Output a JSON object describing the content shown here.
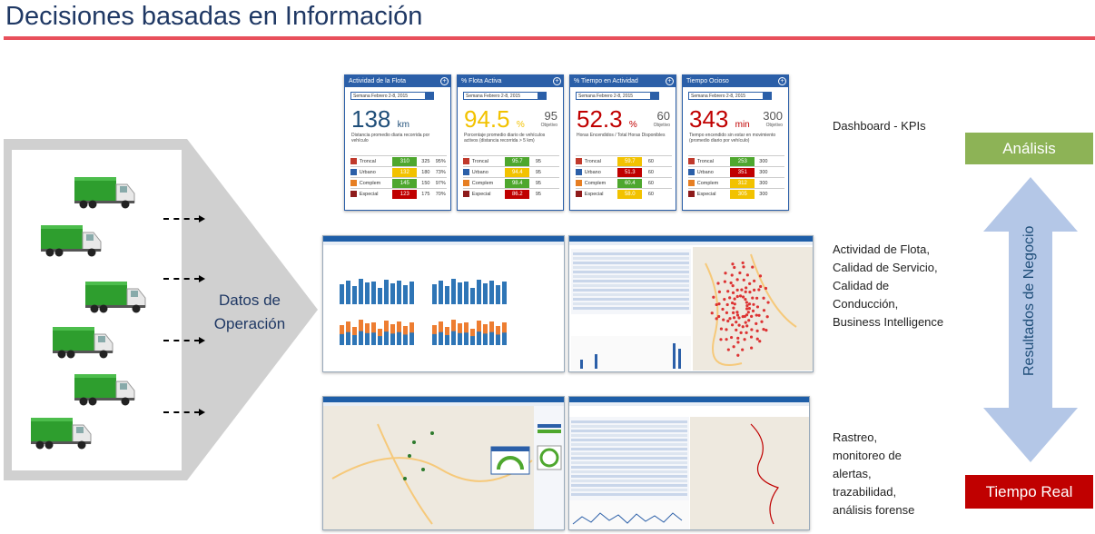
{
  "title": "Decisiones basadas en Información",
  "colors": {
    "accent_rule": "#e8505b",
    "analisis": "#8db356",
    "tiempo_real": "#c00000",
    "kpi_blue": "#2b5fa8",
    "truck_green": "#2e9e2e"
  },
  "datos_operacion": "Datos de Operación",
  "kpis": [
    {
      "title": "Actividad de la Flota",
      "period": "Semana Febrero 2-8, 2015",
      "value": "138",
      "unit": "km",
      "objective": "",
      "objective_label": "",
      "value_color": "#1f4e79",
      "description": "Distancia promedio diaria recorrida por vehículo",
      "rows": [
        {
          "label": "Troncal",
          "value": "310",
          "obj": "325",
          "pct": "95%",
          "color": "#4ea72e",
          "icon": "#c0392b"
        },
        {
          "label": "Urbano",
          "value": "132",
          "obj": "180",
          "pct": "73%",
          "color": "#f2c200",
          "icon": "#2b5fa8"
        },
        {
          "label": "Complem",
          "value": "145",
          "obj": "150",
          "pct": "97%",
          "color": "#4ea72e",
          "icon": "#e67e22"
        },
        {
          "label": "Especial",
          "value": "123",
          "obj": "175",
          "pct": "70%",
          "color": "#c00000",
          "icon": "#8e1b1b"
        }
      ]
    },
    {
      "title": "% Flota Activa",
      "period": "Semana Febrero 2-8, 2015",
      "value": "94.5",
      "unit": "%",
      "objective": "95",
      "objective_label": "Objetivo",
      "value_color": "#f2c200",
      "description": "Porcentaje promedio diario de vehículos activos (distancia recorrida > 5 km)",
      "rows": [
        {
          "label": "Troncal",
          "value": "95.7",
          "obj": "95",
          "pct": "",
          "color": "#4ea72e",
          "icon": "#c0392b"
        },
        {
          "label": "Urbano",
          "value": "94.4",
          "obj": "95",
          "pct": "",
          "color": "#f2c200",
          "icon": "#2b5fa8"
        },
        {
          "label": "Complem",
          "value": "98.4",
          "obj": "95",
          "pct": "",
          "color": "#4ea72e",
          "icon": "#e67e22"
        },
        {
          "label": "Especial",
          "value": "86.2",
          "obj": "95",
          "pct": "",
          "color": "#c00000",
          "icon": "#8e1b1b"
        }
      ]
    },
    {
      "title": "% Tiempo en Actividad",
      "period": "Semana Febrero 2-8, 2015",
      "value": "52.3",
      "unit": "%",
      "objective": "60",
      "objective_label": "Objetivo",
      "value_color": "#c00000",
      "description": "Horas Encendidos / Total Horas Disponibles",
      "rows": [
        {
          "label": "Troncal",
          "value": "59.7",
          "obj": "60",
          "pct": "",
          "color": "#f2c200",
          "icon": "#c0392b"
        },
        {
          "label": "Urbano",
          "value": "51.3",
          "obj": "60",
          "pct": "",
          "color": "#c00000",
          "icon": "#2b5fa8"
        },
        {
          "label": "Complem",
          "value": "60.4",
          "obj": "60",
          "pct": "",
          "color": "#4ea72e",
          "icon": "#e67e22"
        },
        {
          "label": "Especial",
          "value": "58.0",
          "obj": "60",
          "pct": "",
          "color": "#f2c200",
          "icon": "#8e1b1b"
        }
      ]
    },
    {
      "title": "Tiempo Ocioso",
      "period": "Semana Febrero 2-8, 2015",
      "value": "343",
      "unit": "min",
      "objective": "300",
      "objective_label": "Objetivo",
      "value_color": "#c00000",
      "description": "Tiempo encendido sin estar en movimiento (promedio diario por vehículo)",
      "rows": [
        {
          "label": "Troncal",
          "value": "253",
          "obj": "300",
          "pct": "",
          "color": "#4ea72e",
          "icon": "#c0392b"
        },
        {
          "label": "Urbano",
          "value": "351",
          "obj": "300",
          "pct": "",
          "color": "#c00000",
          "icon": "#2b5fa8"
        },
        {
          "label": "Complem",
          "value": "312",
          "obj": "300",
          "pct": "",
          "color": "#f2c200",
          "icon": "#e67e22"
        },
        {
          "label": "Especial",
          "value": "305",
          "obj": "300",
          "pct": "",
          "color": "#f2c200",
          "icon": "#8e1b1b"
        }
      ]
    }
  ],
  "labels": {
    "dashboard": "Dashboard - KPIs",
    "middle": [
      "Actividad de Flota,",
      "Calidad de Servicio,",
      "Calidad de",
      "Conducción,",
      "Business Intelligence"
    ],
    "bottom": [
      "Rastreo,",
      "monitoreo  de",
      "alertas,",
      "trazabilidad,",
      "análisis forense"
    ]
  },
  "analisis": "Análisis",
  "resultados": "Resultados de Negocio",
  "tiempo_real": "Tiempo Real"
}
